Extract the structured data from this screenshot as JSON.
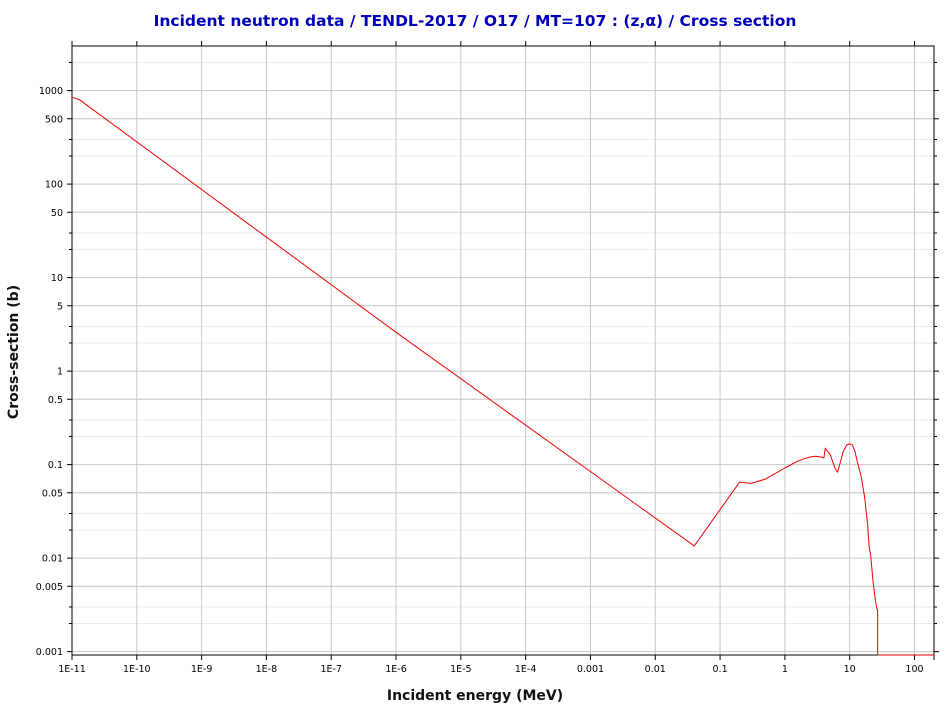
{
  "chart_data": {
    "type": "line",
    "title": "Incident neutron data / TENDL-2017 / O17 / MT=107 : (z,α) / Cross section",
    "xlabel": "Incident energy (MeV)",
    "ylabel": "Cross-section (b)",
    "xscale": "log",
    "yscale": "log",
    "xlim": [
      1e-11,
      200
    ],
    "ylim": [
      0.00092,
      3000
    ],
    "grid": true,
    "x_ticks": [
      {
        "value": 1e-11,
        "label": "1E-11"
      },
      {
        "value": 1e-10,
        "label": "1E-10"
      },
      {
        "value": 1e-09,
        "label": "1E-9"
      },
      {
        "value": 1e-08,
        "label": "1E-8"
      },
      {
        "value": 1e-07,
        "label": "1E-7"
      },
      {
        "value": 1e-06,
        "label": "1E-6"
      },
      {
        "value": 1e-05,
        "label": "1E-5"
      },
      {
        "value": 0.0001,
        "label": "1E-4"
      },
      {
        "value": 0.001,
        "label": "0.001"
      },
      {
        "value": 0.01,
        "label": "0.01"
      },
      {
        "value": 0.1,
        "label": "0.1"
      },
      {
        "value": 1,
        "label": "1"
      },
      {
        "value": 10,
        "label": "10"
      },
      {
        "value": 100,
        "label": "100"
      }
    ],
    "y_ticks": [
      {
        "value": 1000,
        "label": "1000"
      },
      {
        "value": 500,
        "label": "500"
      },
      {
        "value": 100,
        "label": "100"
      },
      {
        "value": 50,
        "label": "50"
      },
      {
        "value": 10,
        "label": "10"
      },
      {
        "value": 5,
        "label": "5"
      },
      {
        "value": 1,
        "label": "1"
      },
      {
        "value": 0.5,
        "label": "0.5"
      },
      {
        "value": 0.1,
        "label": "0.1"
      },
      {
        "value": 0.05,
        "label": "0.05"
      },
      {
        "value": 0.01,
        "label": "0.01"
      },
      {
        "value": 0.005,
        "label": "0.005"
      },
      {
        "value": 0.001,
        "label": "0.001"
      }
    ],
    "series": [
      {
        "color": "#ee0000",
        "x": [
          1e-11,
          1.3e-11,
          1e-06,
          0.04,
          0.2,
          0.3,
          0.5,
          1.0,
          1.5,
          2.0,
          2.5,
          3.0,
          3.5,
          4.0,
          4.2,
          5.0,
          6.0,
          6.5,
          7.0,
          8.0,
          9.0,
          10.0,
          11.0,
          12.0,
          13.0,
          14.0,
          15.0,
          17.0,
          19.0,
          20.0,
          21.0,
          23.0,
          25.0,
          26.5,
          27.0,
          27.0,
          30.0,
          200.0
        ],
        "y": [
          850,
          800,
          2.6,
          0.0135,
          0.065,
          0.063,
          0.07,
          0.092,
          0.107,
          0.116,
          0.121,
          0.123,
          0.121,
          0.118,
          0.15,
          0.128,
          0.09,
          0.083,
          0.1,
          0.14,
          0.162,
          0.167,
          0.162,
          0.14,
          0.11,
          0.09,
          0.075,
          0.045,
          0.022,
          0.013,
          0.011,
          0.0055,
          0.0035,
          0.0028,
          0.0028,
          0.00092,
          0.00092,
          0.00092
        ]
      }
    ]
  }
}
